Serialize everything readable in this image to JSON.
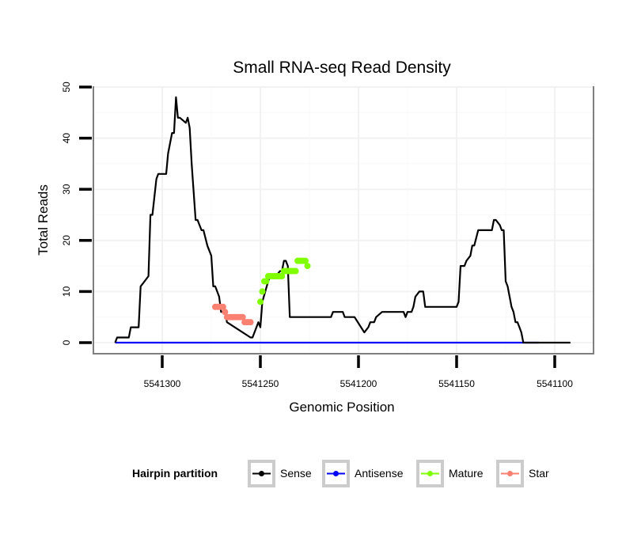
{
  "chart_data": {
    "type": "line",
    "title": "Small RNA-seq Read Density",
    "xlabel": "Genomic Position",
    "ylabel": "Total Reads",
    "x_reversed": true,
    "xlim": [
      5541100,
      5541350
    ],
    "xlim_display": [
      5541333,
      5541083
    ],
    "ylim": [
      -2,
      51
    ],
    "x_ticks": [
      5541300,
      5541250,
      5541200,
      5541150,
      5541100
    ],
    "x_tick_labels": [
      "5541300",
      "5541250",
      "5541200",
      "5541150",
      "5541100"
    ],
    "y_ticks": [
      0,
      10,
      20,
      30,
      40,
      50
    ],
    "y_tick_labels": [
      "0",
      "10",
      "20",
      "30",
      "40",
      "50"
    ],
    "grid": true,
    "legend": {
      "title": "Hairpin partition",
      "placement": "bottom",
      "entries": [
        {
          "name": "Sense",
          "color": "#000000"
        },
        {
          "name": "Antisense",
          "color": "#0000ff"
        },
        {
          "name": "Mature",
          "color": "#7fff00"
        },
        {
          "name": "Star",
          "color": "#fa8072"
        }
      ]
    },
    "series": [
      {
        "name": "Sense",
        "color": "#000000",
        "style": "line",
        "x": [
          5541324,
          5541323,
          5541317,
          5541316,
          5541312,
          5541311,
          5541309,
          5541307,
          5541306,
          5541305,
          5541303,
          5541302,
          5541298,
          5541297,
          5541295,
          5541294,
          5541293,
          5541292,
          5541291,
          5541288,
          5541287,
          5541286,
          5541285,
          5541283,
          5541282,
          5541280,
          5541279,
          5541277,
          5541275,
          5541274,
          5541273,
          5541271,
          5541270,
          5541268,
          5541267,
          5541255,
          5541254,
          5541251,
          5541250,
          5541249,
          5541246,
          5541245,
          5541242,
          5541240,
          5541239,
          5541238,
          5541237,
          5541236,
          5541235,
          5541214,
          5541213,
          5541208,
          5541207,
          5541203,
          5541202,
          5541197,
          5541195,
          5541194,
          5541192,
          5541191,
          5541188,
          5541186,
          5541185,
          5541177,
          5541176,
          5541175,
          5541173,
          5541172,
          5541171,
          5541169,
          5541167,
          5541166,
          5541163,
          5541162,
          5541150,
          5541149,
          5541148,
          5541146,
          5541145,
          5541143,
          5541142,
          5541141,
          5541139,
          5541138,
          5541137,
          5541132,
          5541131,
          5541130,
          5541128,
          5541127,
          5541126,
          5541125,
          5541124,
          5541122,
          5541121,
          5541120,
          5541119,
          5541118,
          5541117,
          5541116,
          5541115,
          5541114,
          5541108,
          5541092
        ],
        "y": [
          0,
          1,
          1,
          3,
          3,
          11,
          12,
          13,
          25,
          25,
          32,
          33,
          33,
          37,
          41,
          41,
          48,
          44,
          44,
          43,
          44,
          42,
          35,
          24,
          24,
          22,
          22,
          19,
          17,
          11,
          11,
          9,
          6,
          6,
          4,
          1,
          1,
          4,
          3,
          8,
          12,
          13,
          13,
          14,
          14,
          16,
          16,
          15,
          5,
          5,
          6,
          6,
          5,
          5,
          5,
          2,
          3,
          4,
          4,
          5,
          6,
          6,
          6,
          6,
          5,
          6,
          6,
          7,
          9,
          10,
          10,
          7,
          7,
          7,
          7,
          8,
          15,
          15,
          16,
          17,
          19,
          19,
          22,
          22,
          22,
          22,
          24,
          24,
          23,
          22,
          22,
          12,
          11,
          7,
          6,
          4,
          4,
          3,
          2,
          0,
          0,
          0,
          0,
          0
        ]
      },
      {
        "name": "Antisense",
        "color": "#0000ff",
        "style": "line",
        "x": [
          5541324,
          5541108
        ],
        "y": [
          0,
          0
        ]
      },
      {
        "name": "Mature",
        "color": "#7fff00",
        "style": "points",
        "x": [
          5541250,
          5541249,
          5541248,
          5541247,
          5541246,
          5541245,
          5541244,
          5541243,
          5541242,
          5541241,
          5541240,
          5541239,
          5541238,
          5541237,
          5541236,
          5541235,
          5541234,
          5541233,
          5541232,
          5541231,
          5541230,
          5541229,
          5541228,
          5541227,
          5541226
        ],
        "y": [
          8,
          10,
          12,
          12,
          13,
          13,
          13,
          13,
          13,
          13,
          13,
          13,
          14,
          14,
          14,
          14,
          14,
          14,
          14,
          16,
          16,
          16,
          16,
          16,
          15
        ]
      },
      {
        "name": "Star",
        "color": "#fa8072",
        "style": "points",
        "x": [
          5541273,
          5541272,
          5541271,
          5541270,
          5541269,
          5541268,
          5541267,
          5541266,
          5541265,
          5541264,
          5541263,
          5541262,
          5541261,
          5541260,
          5541259,
          5541258,
          5541257,
          5541256,
          5541255
        ],
        "y": [
          7,
          7,
          7,
          7,
          7,
          6,
          5,
          5,
          5,
          5,
          5,
          5,
          5,
          5,
          5,
          4,
          4,
          4,
          4
        ]
      }
    ]
  }
}
